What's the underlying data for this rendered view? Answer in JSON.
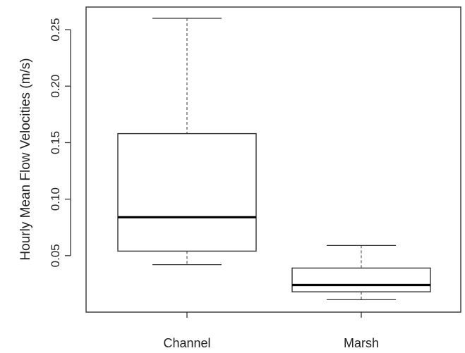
{
  "chart_data": {
    "type": "boxplot",
    "title": "",
    "xlabel": "",
    "ylabel": "Hourly Mean Flow Velocities (m/s)",
    "categories": [
      "Channel",
      "Marsh"
    ],
    "boxes": [
      {
        "category": "Channel",
        "whisker_low": 0.042,
        "q1": 0.054,
        "median": 0.084,
        "q3": 0.158,
        "whisker_high": 0.26
      },
      {
        "category": "Marsh",
        "whisker_low": 0.011,
        "q1": 0.018,
        "median": 0.024,
        "q3": 0.039,
        "whisker_high": 0.059
      }
    ],
    "yticks": [
      0.05,
      0.1,
      0.15,
      0.2,
      0.25
    ],
    "ytick_labels": [
      "0.05",
      "0.10",
      "0.15",
      "0.20",
      "0.25"
    ],
    "ylim": [
      0.0,
      0.27
    ],
    "grid": false,
    "colors": {
      "box_fill": "#ffffff",
      "line": "#333333",
      "median": "#000000"
    }
  }
}
